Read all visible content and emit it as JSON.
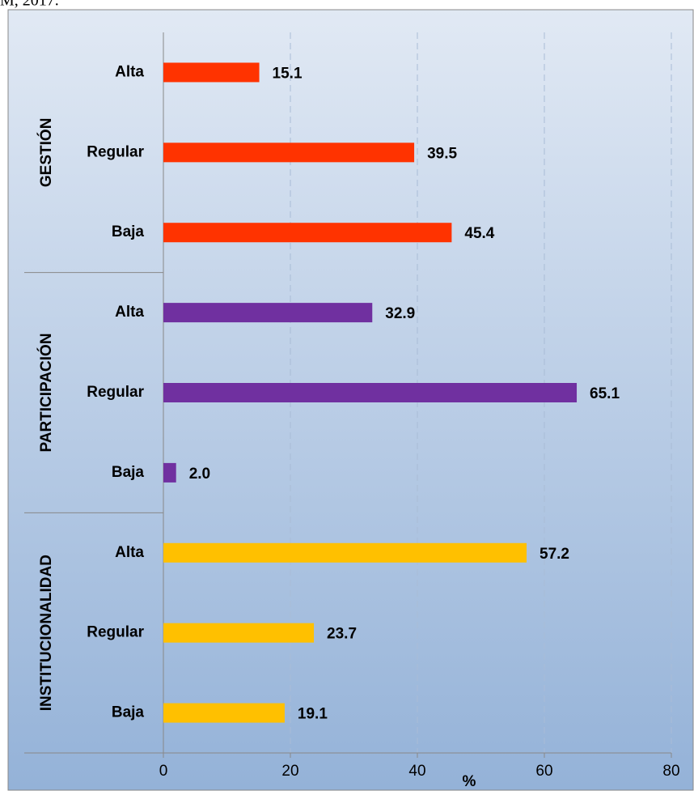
{
  "caption": "M, 2017.",
  "chart_data": {
    "type": "bar",
    "orientation": "horizontal",
    "categories": [
      "Alta",
      "Regular",
      "Baja"
    ],
    "series": [
      {
        "name": "GESTIÓN",
        "color": "#ff3300",
        "values": [
          15.1,
          39.5,
          45.4
        ],
        "value_labels": [
          "15.1",
          "39.5",
          "45.4"
        ]
      },
      {
        "name": "PARTICIPACIÓN",
        "color": "#7030a0",
        "values": [
          32.9,
          65.1,
          2.0
        ],
        "value_labels": [
          "32.9",
          "65.1",
          "2.0"
        ]
      },
      {
        "name": "INSTITUCIONALIDAD",
        "color": "#ffc000",
        "values": [
          57.2,
          23.7,
          19.1
        ],
        "value_labels": [
          "57.2",
          "23.7",
          "19.1"
        ]
      }
    ],
    "xlabel": "%",
    "xlim": [
      0,
      80
    ],
    "xticks": [
      0,
      20,
      40,
      60,
      80
    ],
    "grid": true
  }
}
